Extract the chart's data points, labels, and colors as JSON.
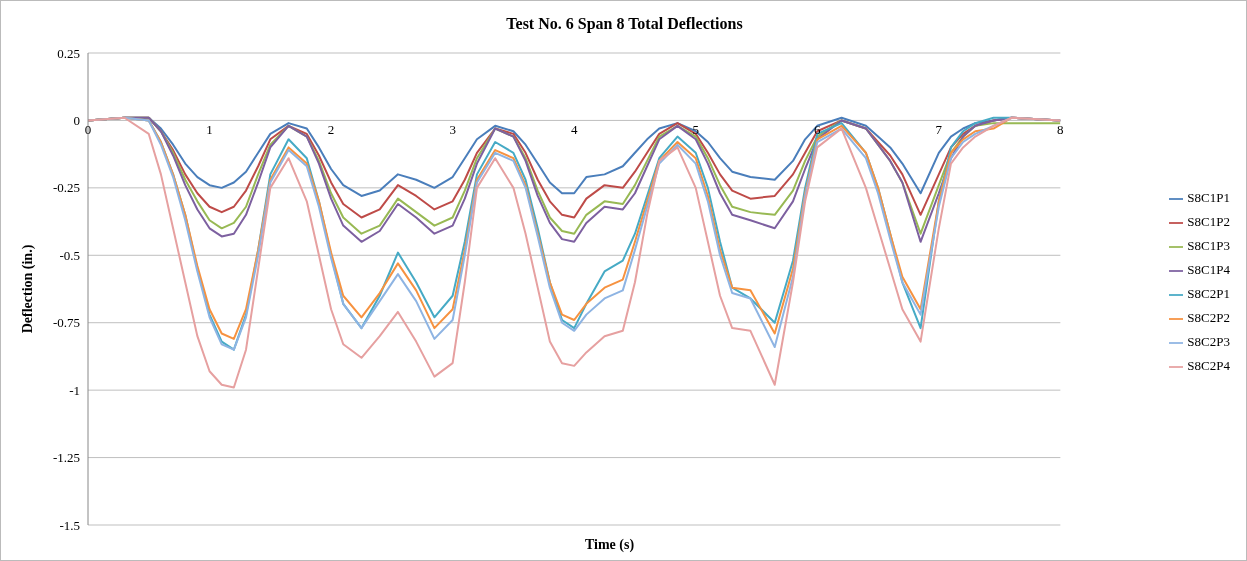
{
  "chart_data": {
    "type": "line",
    "title": "Test No. 6 Span 8 Total Deflections",
    "xlabel": "Time (s)",
    "ylabel": "Deflection (in.)",
    "x": [
      0,
      0.3,
      0.5,
      0.6,
      0.7,
      0.8,
      0.9,
      1.0,
      1.1,
      1.2,
      1.3,
      1.4,
      1.5,
      1.65,
      1.8,
      1.9,
      2.0,
      2.1,
      2.25,
      2.4,
      2.55,
      2.7,
      2.85,
      3.0,
      3.1,
      3.2,
      3.35,
      3.5,
      3.6,
      3.7,
      3.8,
      3.9,
      4.0,
      4.1,
      4.25,
      4.4,
      4.5,
      4.6,
      4.7,
      4.85,
      5.0,
      5.1,
      5.2,
      5.3,
      5.45,
      5.65,
      5.8,
      5.9,
      6.0,
      6.2,
      6.4,
      6.5,
      6.6,
      6.7,
      6.85,
      7.0,
      7.1,
      7.2,
      7.3,
      7.45,
      7.6,
      8.0
    ],
    "series": [
      {
        "name": "S8C1P1",
        "color": "#4a7ebb",
        "values": [
          0,
          0.01,
          0.01,
          -0.03,
          -0.09,
          -0.16,
          -0.21,
          -0.24,
          -0.25,
          -0.23,
          -0.19,
          -0.12,
          -0.05,
          -0.01,
          -0.03,
          -0.1,
          -0.18,
          -0.24,
          -0.28,
          -0.26,
          -0.2,
          -0.22,
          -0.25,
          -0.21,
          -0.14,
          -0.07,
          -0.02,
          -0.04,
          -0.09,
          -0.16,
          -0.23,
          -0.27,
          -0.27,
          -0.21,
          -0.2,
          -0.17,
          -0.12,
          -0.07,
          -0.03,
          -0.01,
          -0.04,
          -0.08,
          -0.14,
          -0.19,
          -0.21,
          -0.22,
          -0.15,
          -0.07,
          -0.02,
          0.01,
          -0.02,
          -0.06,
          -0.1,
          -0.16,
          -0.27,
          -0.12,
          -0.06,
          -0.03,
          -0.01,
          0,
          0.01,
          0
        ]
      },
      {
        "name": "S8C1P2",
        "color": "#be4b48",
        "values": [
          0,
          0.01,
          0.01,
          -0.04,
          -0.11,
          -0.2,
          -0.27,
          -0.32,
          -0.34,
          -0.32,
          -0.26,
          -0.17,
          -0.07,
          -0.02,
          -0.05,
          -0.13,
          -0.23,
          -0.31,
          -0.36,
          -0.33,
          -0.24,
          -0.28,
          -0.33,
          -0.3,
          -0.22,
          -0.12,
          -0.03,
          -0.05,
          -0.12,
          -0.22,
          -0.3,
          -0.35,
          -0.36,
          -0.29,
          -0.24,
          -0.25,
          -0.19,
          -0.12,
          -0.05,
          -0.01,
          -0.05,
          -0.12,
          -0.2,
          -0.26,
          -0.29,
          -0.28,
          -0.2,
          -0.12,
          -0.04,
          0,
          -0.03,
          -0.08,
          -0.13,
          -0.2,
          -0.35,
          -0.2,
          -0.1,
          -0.05,
          -0.02,
          0,
          0.01,
          0
        ]
      },
      {
        "name": "S8C1P3",
        "color": "#98b954",
        "values": [
          0,
          0.01,
          0.01,
          -0.04,
          -0.12,
          -0.22,
          -0.3,
          -0.37,
          -0.4,
          -0.38,
          -0.32,
          -0.2,
          -0.09,
          -0.02,
          -0.06,
          -0.15,
          -0.27,
          -0.36,
          -0.42,
          -0.39,
          -0.29,
          -0.34,
          -0.39,
          -0.36,
          -0.26,
          -0.14,
          -0.03,
          -0.06,
          -0.14,
          -0.26,
          -0.36,
          -0.41,
          -0.42,
          -0.35,
          -0.3,
          -0.31,
          -0.24,
          -0.15,
          -0.06,
          -0.02,
          -0.06,
          -0.14,
          -0.24,
          -0.32,
          -0.34,
          -0.35,
          -0.26,
          -0.15,
          -0.06,
          0,
          -0.03,
          -0.09,
          -0.15,
          -0.23,
          -0.42,
          -0.24,
          -0.12,
          -0.06,
          -0.02,
          -0.01,
          -0.01,
          -0.01
        ]
      },
      {
        "name": "S8C1P4",
        "color": "#7d60a0",
        "values": [
          0,
          0.01,
          0.01,
          -0.04,
          -0.13,
          -0.24,
          -0.33,
          -0.4,
          -0.43,
          -0.42,
          -0.35,
          -0.23,
          -0.1,
          -0.02,
          -0.06,
          -0.16,
          -0.29,
          -0.39,
          -0.45,
          -0.41,
          -0.31,
          -0.36,
          -0.42,
          -0.39,
          -0.29,
          -0.16,
          -0.03,
          -0.06,
          -0.15,
          -0.28,
          -0.38,
          -0.44,
          -0.45,
          -0.38,
          -0.32,
          -0.33,
          -0.27,
          -0.17,
          -0.07,
          -0.02,
          -0.07,
          -0.16,
          -0.27,
          -0.35,
          -0.37,
          -0.4,
          -0.3,
          -0.18,
          -0.07,
          0,
          -0.03,
          -0.09,
          -0.15,
          -0.23,
          -0.45,
          -0.27,
          -0.14,
          -0.06,
          -0.02,
          0,
          0.01,
          0
        ]
      },
      {
        "name": "S8C2P1",
        "color": "#46aac5",
        "values": [
          0,
          0.01,
          0.0,
          -0.08,
          -0.2,
          -0.35,
          -0.55,
          -0.72,
          -0.82,
          -0.85,
          -0.72,
          -0.48,
          -0.2,
          -0.07,
          -0.14,
          -0.3,
          -0.5,
          -0.68,
          -0.77,
          -0.65,
          -0.49,
          -0.6,
          -0.73,
          -0.65,
          -0.45,
          -0.2,
          -0.08,
          -0.12,
          -0.22,
          -0.4,
          -0.6,
          -0.74,
          -0.77,
          -0.68,
          -0.56,
          -0.52,
          -0.42,
          -0.28,
          -0.14,
          -0.06,
          -0.12,
          -0.25,
          -0.45,
          -0.62,
          -0.66,
          -0.75,
          -0.52,
          -0.25,
          -0.05,
          -0.01,
          -0.12,
          -0.25,
          -0.42,
          -0.6,
          -0.77,
          -0.3,
          -0.1,
          -0.04,
          -0.01,
          0.01,
          0.01,
          0
        ]
      },
      {
        "name": "S8C2P2",
        "color": "#f69240",
        "values": [
          0,
          0.01,
          0.0,
          -0.08,
          -0.2,
          -0.35,
          -0.54,
          -0.7,
          -0.79,
          -0.81,
          -0.7,
          -0.48,
          -0.22,
          -0.1,
          -0.16,
          -0.3,
          -0.49,
          -0.65,
          -0.73,
          -0.64,
          -0.53,
          -0.63,
          -0.77,
          -0.7,
          -0.48,
          -0.22,
          -0.11,
          -0.14,
          -0.24,
          -0.42,
          -0.6,
          -0.72,
          -0.74,
          -0.68,
          -0.62,
          -0.59,
          -0.45,
          -0.3,
          -0.15,
          -0.08,
          -0.14,
          -0.28,
          -0.48,
          -0.62,
          -0.63,
          -0.79,
          -0.55,
          -0.27,
          -0.07,
          -0.02,
          -0.12,
          -0.25,
          -0.42,
          -0.58,
          -0.7,
          -0.3,
          -0.12,
          -0.07,
          -0.04,
          -0.03,
          0.01,
          0
        ]
      },
      {
        "name": "S8C2P3",
        "color": "#8eb4e3",
        "values": [
          0,
          0.01,
          0.0,
          -0.09,
          -0.21,
          -0.37,
          -0.56,
          -0.73,
          -0.83,
          -0.85,
          -0.73,
          -0.5,
          -0.23,
          -0.11,
          -0.17,
          -0.32,
          -0.51,
          -0.68,
          -0.77,
          -0.67,
          -0.57,
          -0.67,
          -0.81,
          -0.74,
          -0.5,
          -0.23,
          -0.12,
          -0.15,
          -0.25,
          -0.43,
          -0.62,
          -0.75,
          -0.78,
          -0.72,
          -0.66,
          -0.63,
          -0.48,
          -0.32,
          -0.16,
          -0.09,
          -0.16,
          -0.3,
          -0.5,
          -0.64,
          -0.66,
          -0.84,
          -0.58,
          -0.28,
          -0.08,
          -0.03,
          -0.14,
          -0.27,
          -0.44,
          -0.6,
          -0.72,
          -0.32,
          -0.14,
          -0.08,
          -0.05,
          -0.02,
          0.01,
          0
        ]
      },
      {
        "name": "S8C2P4",
        "color": "#e6a0a0",
        "values": [
          0,
          0.01,
          -0.05,
          -0.2,
          -0.4,
          -0.6,
          -0.8,
          -0.93,
          -0.98,
          -0.99,
          -0.85,
          -0.55,
          -0.25,
          -0.14,
          -0.3,
          -0.5,
          -0.7,
          -0.83,
          -0.88,
          -0.8,
          -0.71,
          -0.82,
          -0.95,
          -0.9,
          -0.6,
          -0.25,
          -0.14,
          -0.25,
          -0.42,
          -0.62,
          -0.82,
          -0.9,
          -0.91,
          -0.86,
          -0.8,
          -0.78,
          -0.6,
          -0.35,
          -0.15,
          -0.1,
          -0.25,
          -0.45,
          -0.65,
          -0.77,
          -0.78,
          -0.98,
          -0.6,
          -0.3,
          -0.1,
          -0.03,
          -0.25,
          -0.4,
          -0.55,
          -0.7,
          -0.82,
          -0.4,
          -0.16,
          -0.1,
          -0.06,
          -0.02,
          0.01,
          0
        ]
      }
    ],
    "xlim": [
      0,
      8
    ],
    "xticks": [
      0,
      1,
      2,
      3,
      4,
      5,
      6,
      7,
      8
    ],
    "ylim": [
      -1.5,
      0.25
    ],
    "yticks": [
      0.25,
      0,
      -0.25,
      -0.5,
      -0.75,
      -1,
      -1.25,
      -1.5
    ],
    "grid": "y",
    "legend": "right",
    "marker": "none",
    "line_style": "solid"
  }
}
